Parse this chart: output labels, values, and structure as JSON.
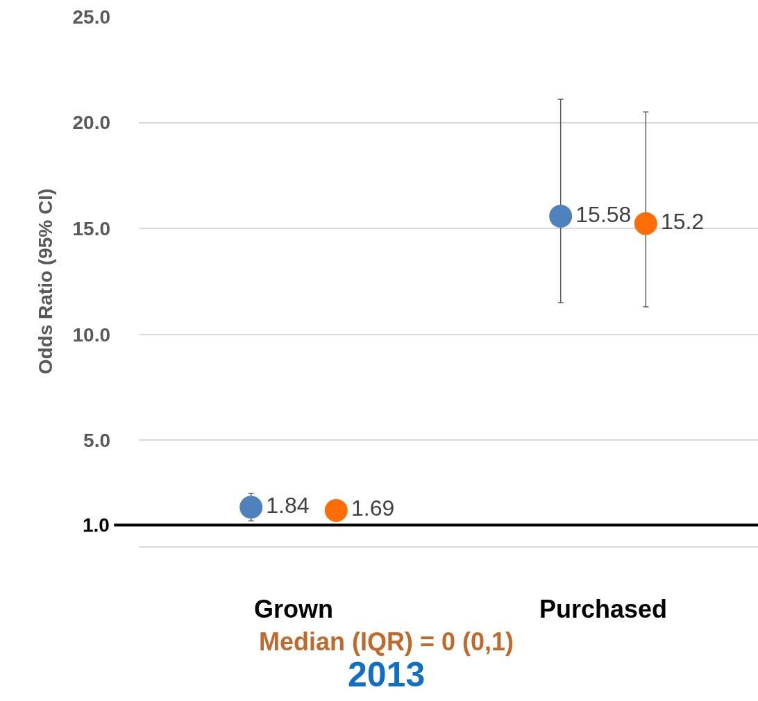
{
  "chart_data": {
    "type": "scatter",
    "ylabel": "Odds Ratio (95% CI)",
    "categories": [
      "Grown",
      "Purchased"
    ],
    "series": [
      {
        "color": "#4f81bd",
        "values": [
          1.84,
          15.58
        ],
        "errors": [
          [
            1.2,
            2.5
          ],
          [
            11.5,
            21.1
          ]
        ],
        "value_labels": [
          "1.84",
          "15.58"
        ]
      },
      {
        "color": "#ff6d06",
        "values": [
          1.69,
          15.23
        ],
        "errors": [
          null,
          [
            11.3,
            20.5
          ]
        ],
        "value_labels": [
          "1.69",
          "15.2"
        ]
      }
    ],
    "ylim": [
      0,
      25
    ],
    "yticks": [
      {
        "value": 0,
        "label": null
      },
      {
        "value": 5,
        "label": "5.0"
      },
      {
        "value": 10,
        "label": "10.0"
      },
      {
        "value": 15,
        "label": "15.0"
      },
      {
        "value": 20,
        "label": "20.0"
      },
      {
        "value": 25,
        "label": "25.0"
      }
    ],
    "ref_lines": [
      {
        "axis": "y",
        "value": 1,
        "label": "1.0",
        "color": "#000000"
      }
    ],
    "annotations": [
      "Median (IQR) = 0 (0,1)",
      "2013"
    ],
    "grid": "y",
    "marker": "circle"
  }
}
